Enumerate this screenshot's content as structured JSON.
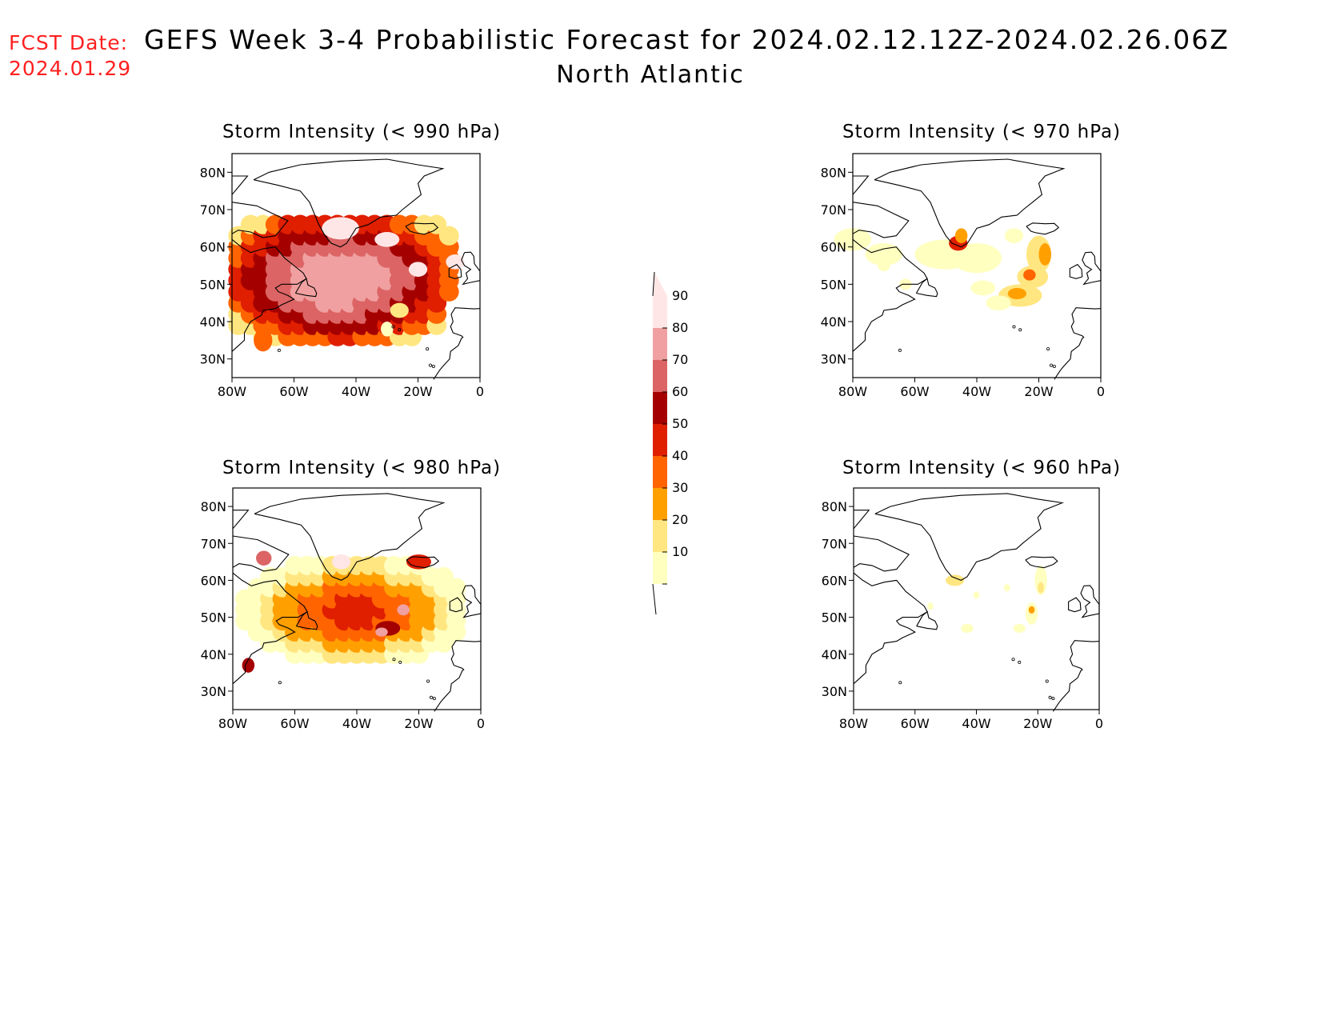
{
  "header": {
    "fcst_label": "FCST Date:",
    "fcst_date": "2024.01.29",
    "title": "GEFS Week 3-4 Probabilistic Forecast for 2024.02.12.12Z-2024.02.26.06Z",
    "subtitle": "North Atlantic"
  },
  "axes": {
    "lat_labels": [
      "80N",
      "70N",
      "60N",
      "50N",
      "40N",
      "30N"
    ],
    "lon_labels": [
      "80W",
      "60W",
      "40W",
      "20W",
      "0"
    ]
  },
  "panels": [
    {
      "id": "p990",
      "title": "Storm Intensity (< 990 hPa)"
    },
    {
      "id": "p970",
      "title": "Storm Intensity (< 970 hPa)"
    },
    {
      "id": "p980",
      "title": "Storm Intensity (< 980 hPa)"
    },
    {
      "id": "p960",
      "title": "Storm Intensity (< 960 hPa)"
    }
  ],
  "colorbar": {
    "levels": [
      "10",
      "20",
      "30",
      "40",
      "50",
      "60",
      "70",
      "80",
      "90"
    ],
    "colors": [
      "#ffffc0",
      "#ffe680",
      "#ffa000",
      "#ff6400",
      "#e01e00",
      "#a50000",
      "#dc6464",
      "#f0a0a0",
      "#ffe6e6"
    ]
  }
}
